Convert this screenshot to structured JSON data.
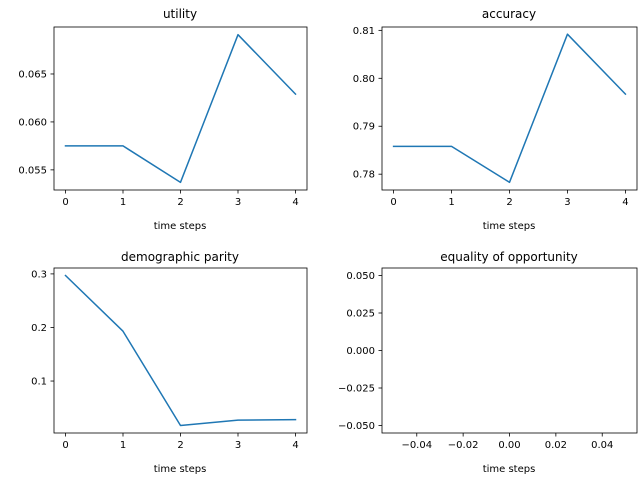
{
  "figure": {
    "background": "#ffffff",
    "line_color": "#1f77b4"
  },
  "chart_data": [
    {
      "type": "line",
      "title": "utility",
      "xlabel": "time steps",
      "ylabel": "",
      "x": [
        0,
        1,
        2,
        3,
        4
      ],
      "series": [
        {
          "values": [
            0.0575,
            0.0575,
            0.0537,
            0.0691,
            0.0629
          ]
        }
      ],
      "xlim": [
        -0.2,
        4.2
      ],
      "ylim": [
        0.0529,
        0.0699
      ],
      "xticks": [
        0,
        1,
        2,
        3,
        4
      ],
      "xtick_labels": [
        "0",
        "1",
        "2",
        "3",
        "4"
      ],
      "yticks": [
        0.055,
        0.06,
        0.065
      ],
      "ytick_labels": [
        "0.055",
        "0.060",
        "0.065"
      ],
      "grid": false,
      "legend": "none"
    },
    {
      "type": "line",
      "title": "accuracy",
      "xlabel": "time steps",
      "ylabel": "",
      "x": [
        0,
        1,
        2,
        3,
        4
      ],
      "series": [
        {
          "values": [
            0.7858,
            0.7858,
            0.7783,
            0.8092,
            0.7967
          ]
        }
      ],
      "xlim": [
        -0.2,
        4.2
      ],
      "ylim": [
        0.7767,
        0.8107
      ],
      "xticks": [
        0,
        1,
        2,
        3,
        4
      ],
      "xtick_labels": [
        "0",
        "1",
        "2",
        "3",
        "4"
      ],
      "yticks": [
        0.78,
        0.79,
        0.8,
        0.81
      ],
      "ytick_labels": [
        "0.78",
        "0.79",
        "0.80",
        "0.81"
      ],
      "grid": false,
      "legend": "none"
    },
    {
      "type": "line",
      "title": "demographic parity",
      "xlabel": "time steps",
      "ylabel": "",
      "x": [
        0,
        1,
        2,
        3,
        4
      ],
      "series": [
        {
          "values": [
            0.297,
            0.193,
            0.017,
            0.027,
            0.028
          ]
        }
      ],
      "xlim": [
        -0.2,
        4.2
      ],
      "ylim": [
        0.003,
        0.311
      ],
      "xticks": [
        0,
        1,
        2,
        3,
        4
      ],
      "xtick_labels": [
        "0",
        "1",
        "2",
        "3",
        "4"
      ],
      "yticks": [
        0.1,
        0.2,
        0.3
      ],
      "ytick_labels": [
        "0.1",
        "0.2",
        "0.3"
      ],
      "grid": false,
      "legend": "none"
    },
    {
      "type": "line",
      "title": "equality of opportunity",
      "xlabel": "time steps",
      "ylabel": "",
      "x": [],
      "series": [
        {
          "values": []
        }
      ],
      "xlim": [
        -0.055,
        0.055
      ],
      "ylim": [
        -0.055,
        0.055
      ],
      "xticks": [
        -0.04,
        -0.02,
        0,
        0.02,
        0.04
      ],
      "xtick_labels": [
        "−0.04",
        "−0.02",
        "0.00",
        "0.02",
        "0.04"
      ],
      "yticks": [
        -0.05,
        -0.025,
        0,
        0.025,
        0.05
      ],
      "ytick_labels": [
        "−0.050",
        "−0.025",
        "0.000",
        "0.025",
        "0.050"
      ],
      "grid": false,
      "legend": "none"
    }
  ]
}
